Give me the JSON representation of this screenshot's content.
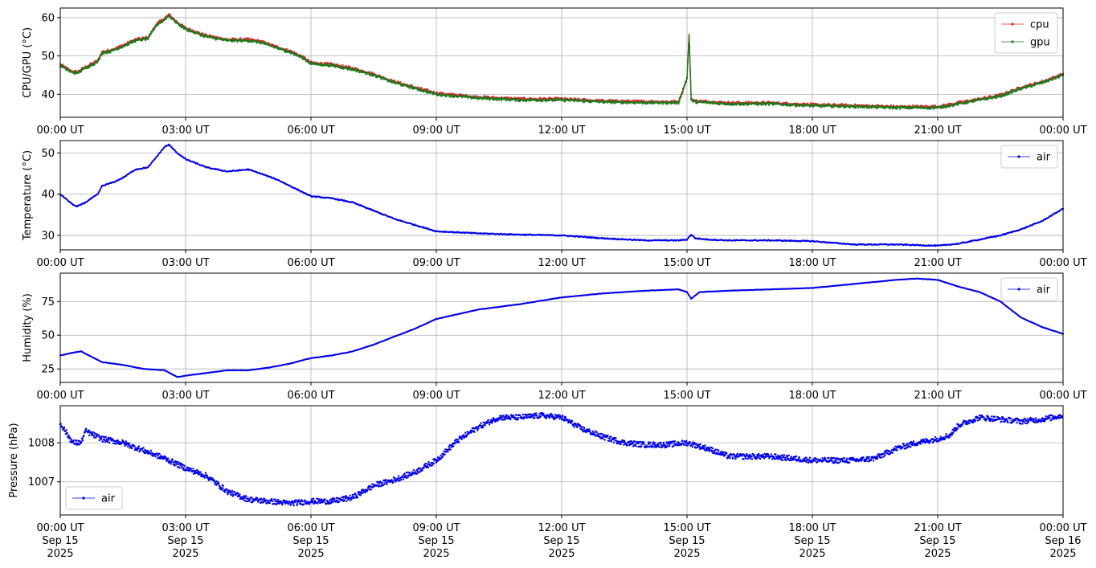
{
  "chart_data": [
    {
      "type": "line",
      "ylabel": "CPU/GPU (°C)",
      "ylim": [
        34,
        62.5
      ],
      "yticks": [
        40,
        50,
        60
      ],
      "xlim_hours": [
        0,
        24
      ],
      "x_tick_labels": [
        "00:00 UT",
        "03:00 UT",
        "06:00 UT",
        "09:00 UT",
        "12:00 UT",
        "15:00 UT",
        "18:00 UT",
        "21:00 UT",
        "00:00 UT"
      ],
      "grid": true,
      "legend_position": "top-right",
      "x_hours": [
        0,
        0.25,
        0.4,
        0.6,
        0.9,
        1.0,
        1.2,
        1.5,
        1.8,
        2.1,
        2.3,
        2.5,
        2.6,
        2.8,
        3.0,
        3.5,
        4.0,
        4.5,
        4.8,
        5.2,
        5.5,
        5.8,
        6.0,
        6.5,
        7.0,
        7.5,
        8.0,
        8.5,
        9.0,
        10.0,
        11.0,
        12.0,
        13.0,
        14.0,
        14.8,
        15.0,
        15.05,
        15.1,
        15.2,
        15.5,
        16.0,
        17.0,
        18.0,
        19.0,
        20.0,
        21.0,
        21.5,
        22.0,
        22.5,
        23.0,
        23.5,
        24.0
      ],
      "series": [
        {
          "name": "cpu",
          "color": "#d62728",
          "offset": 0.3,
          "values": [
            47.5,
            45.8,
            45.5,
            46.8,
            48.5,
            50.8,
            51.2,
            52.5,
            54.0,
            54.5,
            58.0,
            59.5,
            60.5,
            58.5,
            57.0,
            55.0,
            54.0,
            54.0,
            53.5,
            52.0,
            51.0,
            49.5,
            48.0,
            47.5,
            46.5,
            45.0,
            43.0,
            41.5,
            40.0,
            39.0,
            38.5,
            38.5,
            38.0,
            37.8,
            37.8,
            44.0,
            55.5,
            38.5,
            38.0,
            37.8,
            37.5,
            37.5,
            37.0,
            36.8,
            36.5,
            36.5,
            37.5,
            38.5,
            39.5,
            41.5,
            43.0,
            45.0
          ]
        },
        {
          "name": "gpu",
          "color": "#1b7a1b",
          "offset": 0,
          "values": [
            47.5,
            45.8,
            45.5,
            46.8,
            48.5,
            50.8,
            51.2,
            52.5,
            54.0,
            54.5,
            58.0,
            59.5,
            60.5,
            58.5,
            57.0,
            55.0,
            54.0,
            54.0,
            53.5,
            52.0,
            51.0,
            49.5,
            48.0,
            47.5,
            46.5,
            45.0,
            43.0,
            41.5,
            40.0,
            39.0,
            38.5,
            38.5,
            38.0,
            37.8,
            37.8,
            44.0,
            55.5,
            38.5,
            38.0,
            37.8,
            37.5,
            37.5,
            37.0,
            36.8,
            36.5,
            36.5,
            37.5,
            38.5,
            39.5,
            41.5,
            43.0,
            45.0
          ]
        }
      ]
    },
    {
      "type": "line",
      "ylabel": "Temperature (°C)",
      "ylim": [
        26.5,
        53
      ],
      "yticks": [
        30,
        40,
        50
      ],
      "xlim_hours": [
        0,
        24
      ],
      "x_tick_labels": [
        "00:00 UT",
        "03:00 UT",
        "06:00 UT",
        "09:00 UT",
        "12:00 UT",
        "15:00 UT",
        "18:00 UT",
        "21:00 UT",
        "00:00 UT"
      ],
      "grid": true,
      "legend_position": "top-right",
      "x_hours": [
        0,
        0.3,
        0.4,
        0.6,
        0.9,
        1.0,
        1.3,
        1.5,
        1.8,
        2.1,
        2.3,
        2.5,
        2.6,
        2.8,
        3.0,
        3.5,
        4.0,
        4.5,
        4.8,
        5.2,
        5.5,
        5.8,
        6.0,
        6.5,
        7.0,
        7.5,
        8.0,
        8.5,
        9.0,
        10.0,
        11.0,
        12.0,
        13.0,
        14.0,
        14.8,
        15.0,
        15.1,
        15.2,
        15.5,
        16.0,
        17.0,
        18.0,
        19.0,
        20.0,
        21.0,
        21.5,
        22.0,
        22.5,
        23.0,
        23.5,
        24.0
      ],
      "series": [
        {
          "name": "air",
          "color": "#0000ee",
          "values": [
            40.0,
            37.5,
            37.0,
            38.0,
            40.0,
            42.0,
            43.0,
            44.0,
            46.0,
            46.5,
            49.0,
            51.5,
            52.0,
            50.0,
            48.5,
            46.5,
            45.5,
            46.0,
            45.0,
            43.5,
            42.0,
            40.5,
            39.5,
            39.0,
            38.0,
            36.0,
            34.0,
            32.5,
            31.0,
            30.5,
            30.2,
            30.0,
            29.3,
            28.8,
            28.8,
            29.0,
            30.2,
            29.3,
            29.0,
            28.8,
            28.8,
            28.6,
            27.8,
            27.8,
            27.5,
            28.0,
            29.0,
            30.0,
            31.5,
            33.5,
            36.5
          ]
        }
      ]
    },
    {
      "type": "line",
      "ylabel": "Humidity (%)",
      "ylim": [
        15,
        96
      ],
      "yticks": [
        25,
        50,
        75
      ],
      "xlim_hours": [
        0,
        24
      ],
      "x_tick_labels": [
        "00:00 UT",
        "03:00 UT",
        "06:00 UT",
        "09:00 UT",
        "12:00 UT",
        "15:00 UT",
        "18:00 UT",
        "21:00 UT",
        "00:00 UT"
      ],
      "grid": true,
      "legend_position": "top-right",
      "x_hours": [
        0,
        0.3,
        0.5,
        1.0,
        1.5,
        2.0,
        2.5,
        2.8,
        3.0,
        3.5,
        4.0,
        4.5,
        5.0,
        5.5,
        6.0,
        6.5,
        7.0,
        7.5,
        8.0,
        8.5,
        9.0,
        10.0,
        11.0,
        12.0,
        13.0,
        14.0,
        14.8,
        15.0,
        15.1,
        15.3,
        16.0,
        17.0,
        18.0,
        19.0,
        20.0,
        20.5,
        21.0,
        21.5,
        22.0,
        22.5,
        23.0,
        23.5,
        24.0
      ],
      "series": [
        {
          "name": "air",
          "color": "#0000ee",
          "values": [
            35,
            37,
            38,
            30,
            28,
            25,
            24,
            19,
            20,
            22,
            24,
            24,
            26,
            29,
            33,
            35,
            38,
            43,
            49,
            55,
            62,
            69,
            73,
            78,
            81,
            83,
            84,
            82,
            77,
            82,
            83,
            84,
            85,
            88,
            91,
            92,
            91,
            86,
            82,
            75,
            63,
            56,
            51
          ]
        }
      ]
    },
    {
      "type": "scatter",
      "ylabel": "Pressure (hPa)",
      "ylim": [
        1006.15,
        1008.95
      ],
      "yticks": [
        1007,
        1008
      ],
      "xlim_hours": [
        0,
        24
      ],
      "x_tick_labels": [
        "00:00 UT\nSep 15\n2025",
        "03:00 UT\nSep 15\n2025",
        "06:00 UT\nSep 15\n2025",
        "09:00 UT\nSep 15\n2025",
        "12:00 UT\nSep 15\n2025",
        "15:00 UT\nSep 15\n2025",
        "18:00 UT\nSep 15\n2025",
        "21:00 UT\nSep 15\n2025",
        "00:00 UT\nSep 16\n2025"
      ],
      "grid": true,
      "legend_position": "bottom-left",
      "x_hours": [
        0,
        0.3,
        0.5,
        0.6,
        1.0,
        1.5,
        2.0,
        2.5,
        3.0,
        3.5,
        4.0,
        4.5,
        5.0,
        5.5,
        6.0,
        6.5,
        7.0,
        7.5,
        8.0,
        8.5,
        9.0,
        9.5,
        10.0,
        10.5,
        11.0,
        11.5,
        12.0,
        12.5,
        13.0,
        13.5,
        14.0,
        14.5,
        15.0,
        15.5,
        16.0,
        16.5,
        17.0,
        17.5,
        18.0,
        18.5,
        19.0,
        19.5,
        20.0,
        20.5,
        21.0,
        21.3,
        21.5,
        22.0,
        22.5,
        23.0,
        23.5,
        24.0
      ],
      "series": [
        {
          "name": "air",
          "color": "#0000ee",
          "values": [
            1008.5,
            1008.0,
            1008.0,
            1008.3,
            1008.1,
            1008.0,
            1007.8,
            1007.6,
            1007.35,
            1007.15,
            1006.75,
            1006.55,
            1006.5,
            1006.45,
            1006.5,
            1006.5,
            1006.6,
            1006.9,
            1007.05,
            1007.25,
            1007.55,
            1008.05,
            1008.4,
            1008.65,
            1008.65,
            1008.7,
            1008.65,
            1008.35,
            1008.15,
            1008.0,
            1007.95,
            1007.95,
            1008.0,
            1007.85,
            1007.65,
            1007.65,
            1007.65,
            1007.6,
            1007.55,
            1007.55,
            1007.55,
            1007.6,
            1007.85,
            1008.0,
            1008.1,
            1008.2,
            1008.45,
            1008.65,
            1008.6,
            1008.55,
            1008.6,
            1008.7
          ]
        }
      ]
    }
  ]
}
